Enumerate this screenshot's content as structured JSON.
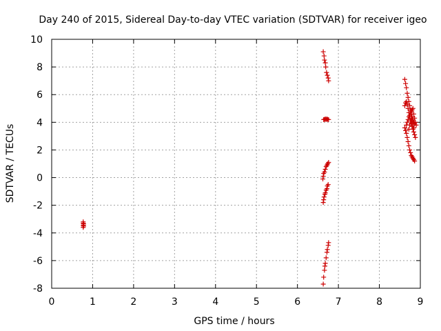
{
  "chart_data": {
    "type": "scatter",
    "title": "Day 240 of 2015, Sidereal Day-to-day VTEC variation (SDTVAR) for receiver igeo",
    "xlabel": "GPS time / hours",
    "ylabel": "SDTVAR / TECUs",
    "xlim": [
      0,
      9
    ],
    "ylim": [
      -8,
      10
    ],
    "xticks": [
      "0",
      "1",
      "2",
      "3",
      "4",
      "5",
      "6",
      "7",
      "8",
      "9"
    ],
    "yticks": [
      "-8",
      "-6",
      "-4",
      "-2",
      "0",
      "2",
      "4",
      "6",
      "8",
      "10"
    ],
    "grid": true,
    "marker": "+",
    "color": "#cc0000",
    "series": [
      {
        "name": "SDTVAR",
        "points": [
          [
            0.77,
            -3.3
          ],
          [
            0.77,
            -3.45
          ],
          [
            0.77,
            -3.6
          ],
          [
            0.77,
            -3.2
          ],
          [
            0.78,
            -3.35
          ],
          [
            0.78,
            -3.5
          ],
          [
            6.63,
            9.1
          ],
          [
            6.65,
            8.8
          ],
          [
            6.66,
            8.5
          ],
          [
            6.68,
            8.3
          ],
          [
            6.69,
            8.0
          ],
          [
            6.71,
            7.6
          ],
          [
            6.73,
            7.4
          ],
          [
            6.75,
            7.2
          ],
          [
            6.76,
            7.0
          ],
          [
            6.64,
            4.2
          ],
          [
            6.66,
            4.2
          ],
          [
            6.68,
            4.25
          ],
          [
            6.7,
            4.2
          ],
          [
            6.72,
            4.25
          ],
          [
            6.74,
            4.2
          ],
          [
            6.76,
            4.2
          ],
          [
            6.62,
            -0.1
          ],
          [
            6.63,
            0.1
          ],
          [
            6.64,
            0.3
          ],
          [
            6.66,
            0.4
          ],
          [
            6.68,
            0.6
          ],
          [
            6.7,
            0.8
          ],
          [
            6.72,
            0.9
          ],
          [
            6.74,
            1.0
          ],
          [
            6.76,
            1.1
          ],
          [
            6.63,
            -1.8
          ],
          [
            6.64,
            -1.6
          ],
          [
            6.65,
            -1.4
          ],
          [
            6.67,
            -1.2
          ],
          [
            6.68,
            -1.1
          ],
          [
            6.7,
            -0.9
          ],
          [
            6.72,
            -0.8
          ],
          [
            6.73,
            -0.6
          ],
          [
            6.75,
            -0.5
          ],
          [
            6.63,
            -7.7
          ],
          [
            6.64,
            -7.2
          ],
          [
            6.66,
            -6.7
          ],
          [
            6.67,
            -6.4
          ],
          [
            6.68,
            -6.2
          ],
          [
            6.7,
            -5.8
          ],
          [
            6.72,
            -5.4
          ],
          [
            6.73,
            -5.2
          ],
          [
            6.75,
            -4.9
          ],
          [
            6.76,
            -4.7
          ],
          [
            8.62,
            7.1
          ],
          [
            8.64,
            6.8
          ],
          [
            8.66,
            6.5
          ],
          [
            8.68,
            6.1
          ],
          [
            8.7,
            5.8
          ],
          [
            8.72,
            5.5
          ],
          [
            8.74,
            5.2
          ],
          [
            8.76,
            4.9
          ],
          [
            8.78,
            4.6
          ],
          [
            8.8,
            4.4
          ],
          [
            8.82,
            4.2
          ],
          [
            8.84,
            4.0
          ],
          [
            8.86,
            3.9
          ],
          [
            8.62,
            5.2
          ],
          [
            8.64,
            5.4
          ],
          [
            8.66,
            5.5
          ],
          [
            8.68,
            5.3
          ],
          [
            8.7,
            5.0
          ],
          [
            8.72,
            4.7
          ],
          [
            8.74,
            4.4
          ],
          [
            8.76,
            4.1
          ],
          [
            8.78,
            3.9
          ],
          [
            8.8,
            3.7
          ],
          [
            8.82,
            3.5
          ],
          [
            8.84,
            3.3
          ],
          [
            8.86,
            3.1
          ],
          [
            8.88,
            2.9
          ],
          [
            8.62,
            3.6
          ],
          [
            8.64,
            3.4
          ],
          [
            8.66,
            3.2
          ],
          [
            8.68,
            2.9
          ],
          [
            8.7,
            2.6
          ],
          [
            8.72,
            2.3
          ],
          [
            8.74,
            2.0
          ],
          [
            8.76,
            1.8
          ],
          [
            8.78,
            1.6
          ],
          [
            8.8,
            1.5
          ],
          [
            8.82,
            1.4
          ],
          [
            8.84,
            1.3
          ],
          [
            8.86,
            1.2
          ],
          [
            8.66,
            3.8
          ],
          [
            8.68,
            4.0
          ],
          [
            8.7,
            4.2
          ],
          [
            8.72,
            4.4
          ],
          [
            8.74,
            4.5
          ],
          [
            8.76,
            4.7
          ],
          [
            8.78,
            4.8
          ],
          [
            8.8,
            4.9
          ],
          [
            8.82,
            5.0
          ],
          [
            8.84,
            4.6
          ],
          [
            8.86,
            4.3
          ],
          [
            8.88,
            4.0
          ],
          [
            8.9,
            3.8
          ],
          [
            8.72,
            3.5
          ],
          [
            8.74,
            3.8
          ],
          [
            8.76,
            4.1
          ],
          [
            8.78,
            4.3
          ],
          [
            8.8,
            4.1
          ],
          [
            8.82,
            3.9
          ],
          [
            8.84,
            3.6
          ]
        ]
      }
    ]
  }
}
